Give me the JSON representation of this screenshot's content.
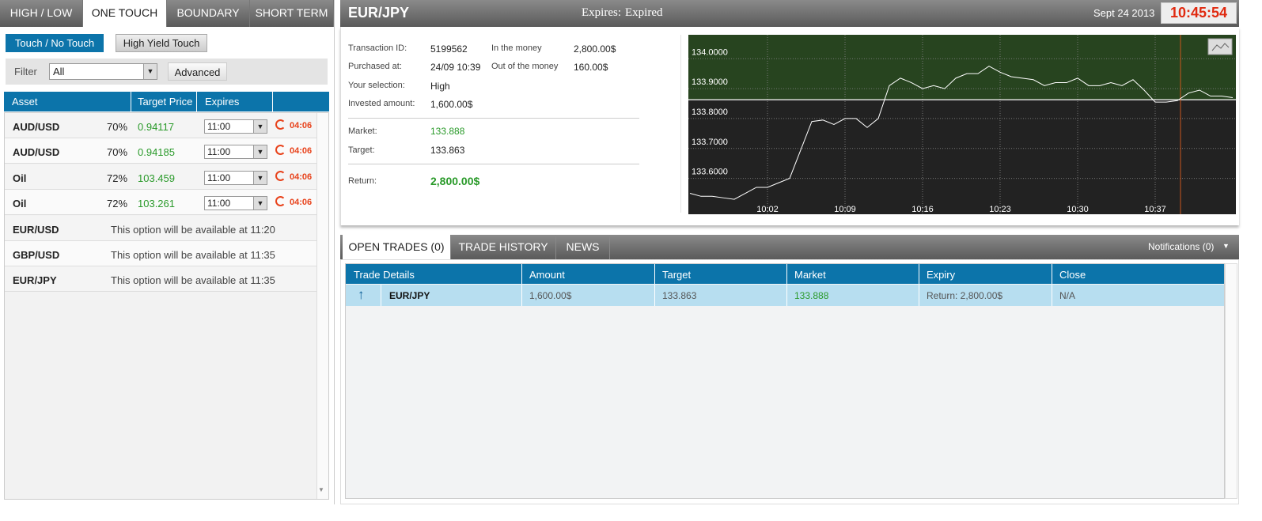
{
  "product_tabs": [
    "HIGH / LOW",
    "ONE TOUCH",
    "BOUNDARY",
    "SHORT TERM"
  ],
  "option_tabs": [
    "Touch / No Touch",
    "High Yield Touch"
  ],
  "filter": {
    "label": "Filter",
    "value": "All",
    "button": "Advanced"
  },
  "assets": {
    "headers": [
      "Asset",
      "Target Price",
      "Expires"
    ],
    "rows": [
      {
        "asset": "AUD/USD",
        "payout": "70%",
        "target": "0.94117",
        "expires": "11:00",
        "countdown": "04:06"
      },
      {
        "asset": "AUD/USD",
        "payout": "70%",
        "target": "0.94185",
        "expires": "11:00",
        "countdown": "04:06"
      },
      {
        "asset": "Oil",
        "payout": "72%",
        "target": "103.459",
        "expires": "11:00",
        "countdown": "04:06"
      },
      {
        "asset": "Oil",
        "payout": "72%",
        "target": "103.261",
        "expires": "11:00",
        "countdown": "04:06"
      },
      {
        "asset": "EUR/USD",
        "note": "This option will be available at 11:20"
      },
      {
        "asset": "GBP/USD",
        "note": "This option will be available at 11:35"
      },
      {
        "asset": "EUR/JPY",
        "note": "This option will be available at 11:35"
      }
    ]
  },
  "trade": {
    "asset": "EUR/JPY",
    "expires_label": "Expires:",
    "expires_value": "Expired",
    "date": "Sept 24 2013",
    "clock": "10:45:54"
  },
  "details": {
    "left": [
      [
        "Transaction ID:",
        "5199562"
      ],
      [
        "Purchased at:",
        "24/09 10:39"
      ],
      [
        "Your selection:",
        "High"
      ],
      [
        "Invested amount:",
        "1,600.00$"
      ]
    ],
    "right": [
      [
        "In the money",
        "2,800.00$"
      ],
      [
        "Out of the money",
        "160.00$"
      ]
    ],
    "market": [
      "Market:",
      "133.888"
    ],
    "target": [
      "Target:",
      "133.863"
    ],
    "return": [
      "Return:",
      "2,800.00$"
    ]
  },
  "chart_data": {
    "type": "line",
    "x": [
      "9:55",
      "9:56",
      "9:57",
      "9:58",
      "9:59",
      "10:00",
      "10:01",
      "10:02",
      "10:03",
      "10:04",
      "10:05",
      "10:06",
      "10:07",
      "10:08",
      "10:09",
      "10:10",
      "10:11",
      "10:12",
      "10:13",
      "10:14",
      "10:15",
      "10:16",
      "10:17",
      "10:18",
      "10:19",
      "10:20",
      "10:21",
      "10:22",
      "10:23",
      "10:24",
      "10:25",
      "10:26",
      "10:27",
      "10:28",
      "10:29",
      "10:30",
      "10:31",
      "10:32",
      "10:33",
      "10:34",
      "10:35",
      "10:36",
      "10:37",
      "10:38",
      "10:39",
      "10:40",
      "10:41",
      "10:42",
      "10:43",
      "10:44"
    ],
    "series": [
      {
        "name": "EUR/JPY",
        "color": "#ffffff",
        "values": [
          133.55,
          133.54,
          133.54,
          133.535,
          133.53,
          133.55,
          133.57,
          133.57,
          133.585,
          133.6,
          133.695,
          133.79,
          133.795,
          133.78,
          133.8,
          133.8,
          133.77,
          133.8,
          133.91,
          133.935,
          133.92,
          133.9,
          133.91,
          133.9,
          133.935,
          133.95,
          133.95,
          133.975,
          133.955,
          133.94,
          133.935,
          133.93,
          133.91,
          133.92,
          133.92,
          133.935,
          133.91,
          133.91,
          133.92,
          133.91,
          133.93,
          133.895,
          133.855,
          133.855,
          133.86,
          133.885,
          133.895,
          133.875,
          133.875,
          133.87
        ]
      }
    ],
    "target": 133.863,
    "ylim": [
      133.48,
      134.08
    ],
    "yticks": [
      {
        "value": 133.6,
        "label": "133.6000"
      },
      {
        "value": 133.7,
        "label": "133.7000"
      },
      {
        "value": 133.8,
        "label": "133.8000"
      },
      {
        "value": 133.9,
        "label": "133.9000"
      },
      {
        "value": 134,
        "label": "134.0000"
      }
    ],
    "xticks": [
      "10:02",
      "10:09",
      "10:16",
      "10:23",
      "10:30",
      "10:37"
    ],
    "grid": true
  },
  "bottom_tabs": [
    "OPEN TRADES (0)",
    "TRADE HISTORY",
    "NEWS"
  ],
  "notifications": "Notifications (0)",
  "open_trades": {
    "headers": [
      "Trade Details",
      "Amount",
      "Target",
      "Market",
      "Expiry",
      "Close"
    ],
    "rows": [
      [
        "EUR/JPY",
        "1,600.00$",
        "133.863",
        "133.888",
        "Return: 2,800.00$",
        "N/A"
      ]
    ]
  }
}
